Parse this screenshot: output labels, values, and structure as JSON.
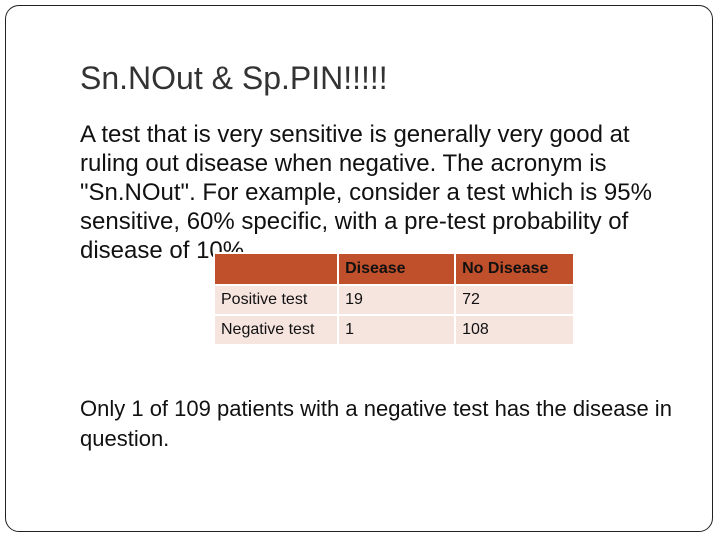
{
  "slide": {
    "title": "Sn.NOut & Sp.PIN!!!!!",
    "body": "A test that is very sensitive is generally very good at ruling out disease when negative.  The acronym is \"Sn.NOut\".  For example, consider a test which is 95% sensitive, 60% specific, with a pre-test probability of disease of 10%.",
    "conclusion": "Only 1 of 109 patients with a negative test has the disease in question."
  },
  "table": {
    "headers": [
      "",
      "Disease",
      "No Disease"
    ],
    "rows": [
      [
        "Positive test",
        "19",
        "72"
      ],
      [
        "Negative test",
        "1",
        "108"
      ]
    ]
  },
  "colors": {
    "header_bg": "#c0502b",
    "cell_bg": "#f6e4df"
  }
}
